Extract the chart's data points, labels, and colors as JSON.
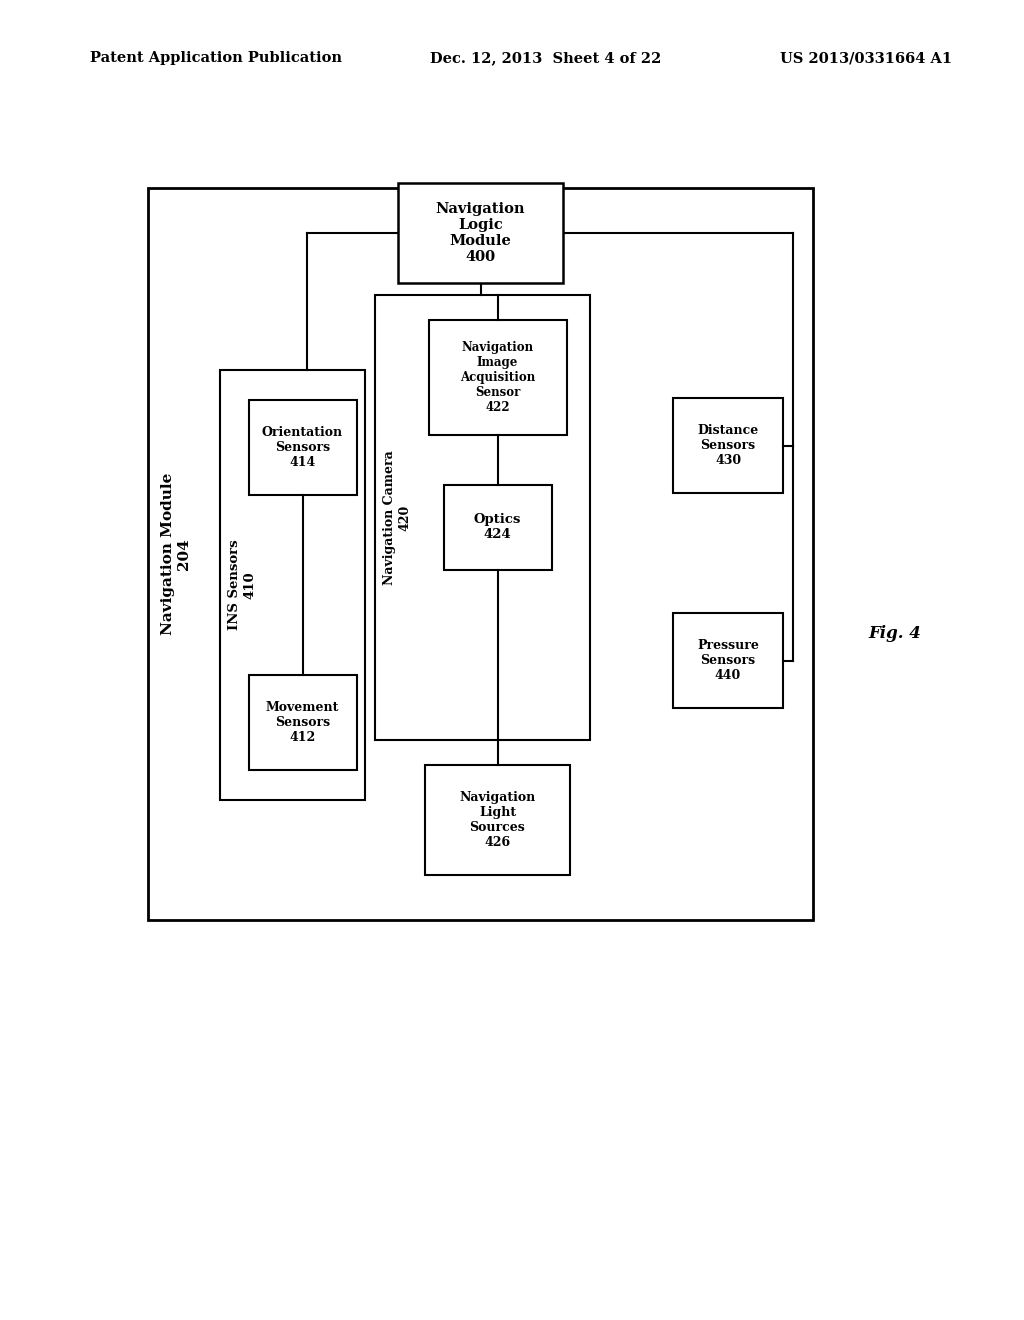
{
  "bg_color": "#ffffff",
  "header_left": "Patent Application Publication",
  "header_center": "Dec. 12, 2013  Sheet 4 of 22",
  "header_right": "US 2013/0331664 A1",
  "fig_label": "Fig. 4"
}
